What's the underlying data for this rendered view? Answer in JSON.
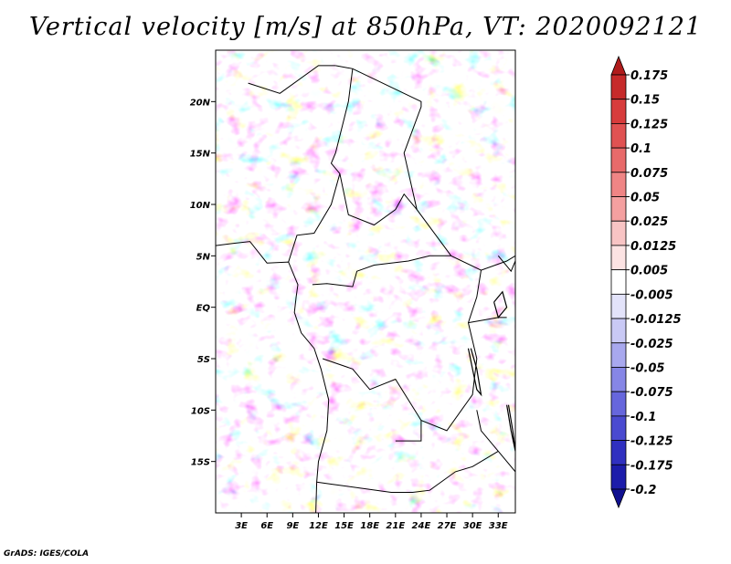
{
  "title": "Vertical velocity [m/s] at 850hPa, VT: 2020092121",
  "footer": "GrADS: IGES/COLA",
  "chart_data": {
    "type": "heatmap",
    "title": "Vertical velocity [m/s] at 850hPa, VT: 2020092121",
    "variable": "Vertical velocity",
    "units": "m/s",
    "level": "850hPa",
    "valid_time": "2020092121",
    "xlim": [
      0,
      35
    ],
    "ylim": [
      -20,
      25
    ],
    "lon_ticks": [
      {
        "value": 3,
        "label": "3E"
      },
      {
        "value": 6,
        "label": "6E"
      },
      {
        "value": 9,
        "label": "9E"
      },
      {
        "value": 12,
        "label": "12E"
      },
      {
        "value": 15,
        "label": "15E"
      },
      {
        "value": 18,
        "label": "18E"
      },
      {
        "value": 21,
        "label": "21E"
      },
      {
        "value": 24,
        "label": "24E"
      },
      {
        "value": 27,
        "label": "27E"
      },
      {
        "value": 30,
        "label": "30E"
      },
      {
        "value": 33,
        "label": "33E"
      }
    ],
    "lat_ticks": [
      {
        "value": 20,
        "label": "20N"
      },
      {
        "value": 15,
        "label": "15N"
      },
      {
        "value": 10,
        "label": "10N"
      },
      {
        "value": 5,
        "label": "5N"
      },
      {
        "value": 0,
        "label": "EQ"
      },
      {
        "value": -5,
        "label": "5S"
      },
      {
        "value": -10,
        "label": "10S"
      },
      {
        "value": -15,
        "label": "15S"
      }
    ],
    "colorbar": {
      "levels": [
        "0.175",
        "0.15",
        "0.125",
        "0.1",
        "0.075",
        "0.05",
        "0.025",
        "0.0125",
        "0.005",
        "-0.005",
        "-0.0125",
        "-0.025",
        "-0.05",
        "-0.075",
        "-0.1",
        "-0.125",
        "-0.175",
        "-0.2"
      ],
      "colors": [
        "#b01c1c",
        "#c62a2a",
        "#d73c3c",
        "#e05252",
        "#e86a6a",
        "#ef8585",
        "#f4a0a0",
        "#f8c4c4",
        "#fce3e3",
        "#ffffff",
        "#e3e3fa",
        "#c9c9f5",
        "#a8a8ee",
        "#8686e6",
        "#6666dc",
        "#4a4ad0",
        "#3030c0",
        "#1c1caa",
        "#101090"
      ]
    }
  }
}
